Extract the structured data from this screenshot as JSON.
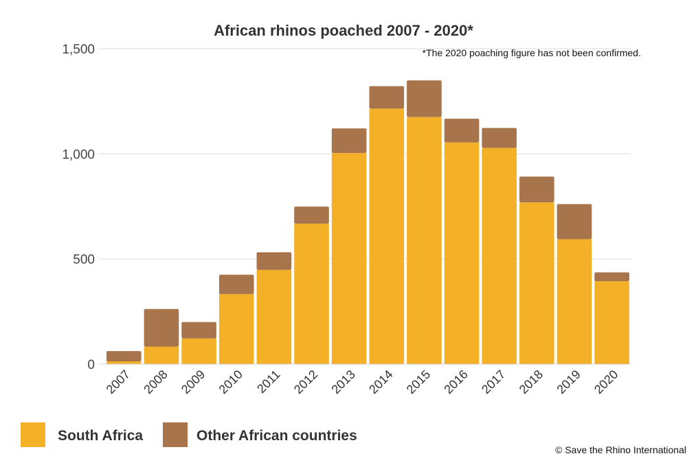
{
  "chart_data": {
    "type": "bar",
    "stacked": true,
    "title": "African rhinos poached 2007 - 2020*",
    "note": "*The 2020 poaching figure  has not been confirmed.",
    "credit": "© Save the Rhino International",
    "categories": [
      "2007",
      "2008",
      "2009",
      "2010",
      "2011",
      "2012",
      "2013",
      "2014",
      "2015",
      "2016",
      "2017",
      "2018",
      "2019",
      "2020"
    ],
    "series": [
      {
        "name": "South Africa",
        "color": "#F4B128",
        "values": [
          13,
          83,
          122,
          333,
          448,
          668,
          1004,
          1215,
          1175,
          1054,
          1028,
          769,
          594,
          394
        ]
      },
      {
        "name": "Other African countries",
        "color": "#A8744B",
        "values": [
          49,
          179,
          78,
          92,
          84,
          81,
          117,
          107,
          174,
          113,
          95,
          123,
          167,
          42
        ]
      }
    ],
    "ylim": [
      0,
      1500
    ],
    "yticks": [
      0,
      500,
      1000,
      1500
    ],
    "ytick_labels": [
      "0",
      "500",
      "1,000",
      "1,500"
    ],
    "grid": true,
    "legend_position": "bottom-left"
  }
}
